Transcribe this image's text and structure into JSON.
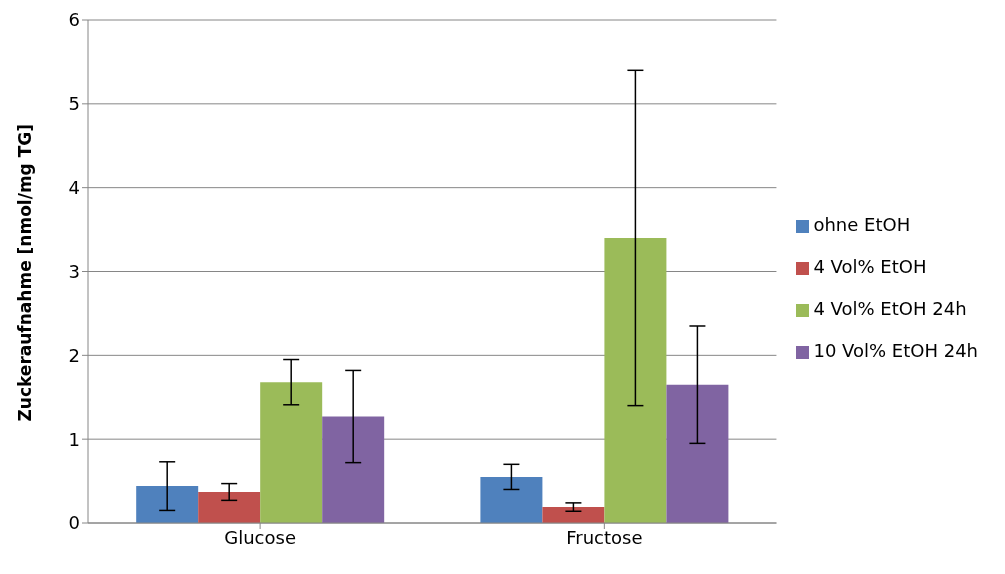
{
  "chart_data": {
    "type": "bar",
    "ylabel": "Zuckeraufnahme [nmol/mg TG]",
    "categories": [
      "Glucose",
      "Fructose"
    ],
    "series": [
      {
        "name": "ohne EtOH",
        "color": "#4f81bd",
        "values": [
          0.44,
          0.55
        ],
        "errors": [
          0.29,
          0.15
        ]
      },
      {
        "name": "4 Vol% EtOH",
        "color": "#c0504d",
        "values": [
          0.37,
          0.19
        ],
        "errors": [
          0.1,
          0.05
        ]
      },
      {
        "name": "4 Vol% EtOH 24h",
        "color": "#9bbb59",
        "values": [
          1.68,
          3.4
        ],
        "errors": [
          0.27,
          2.0
        ]
      },
      {
        "name": "10 Vol% EtOH 24h",
        "color": "#8064a2",
        "values": [
          1.27,
          1.65
        ],
        "errors": [
          0.55,
          0.7
        ]
      }
    ],
    "ylim": [
      0,
      6
    ],
    "yticks": [
      0,
      1,
      2,
      3,
      4,
      5,
      6
    ],
    "grid": "y",
    "legend": "right"
  }
}
